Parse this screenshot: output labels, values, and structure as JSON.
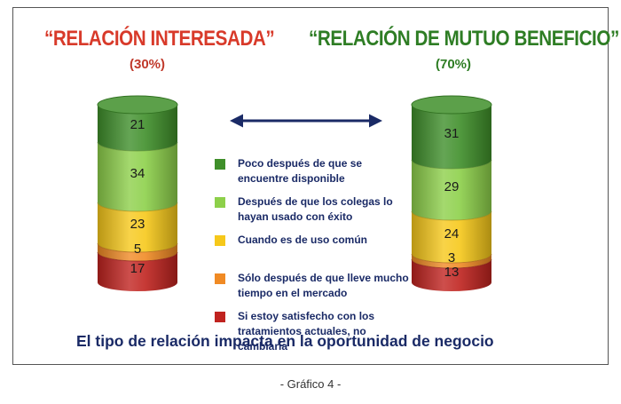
{
  "titles": {
    "left": "“RELACIÓN INTERESADA”",
    "left_pct": "(30%)",
    "right": "“RELACIÓN DE MUTUO BENEFICIO”",
    "right_pct": "(70%)"
  },
  "legend": [
    {
      "label": "Poco después de que se encuentre disponible",
      "color": "#3f8f2a"
    },
    {
      "label": "Después de que los colegas lo hayan usado con éxito",
      "color": "#8dd04a"
    },
    {
      "label": "Cuando es de uso común",
      "color": "#f6c81a"
    },
    {
      "label": "Sólo después de que lleve mucho tiempo en el mercado",
      "color": "#f08a24"
    },
    {
      "label": "Si estoy satisfecho con los tratamientos actuales, no cambiaría",
      "color": "#c0231f"
    }
  ],
  "caption": "El tipo de relación impacta en la oportunidad de negocio",
  "footer": "- Gráfico 4 -",
  "chart_data": {
    "type": "bar",
    "stacked": true,
    "categories": [
      "“RELACIÓN INTERESADA” (30%)",
      "“RELACIÓN DE MUTUO BENEFICIO” (70%)"
    ],
    "series": [
      {
        "name": "Poco después de que se encuentre disponible",
        "values": [
          21,
          31
        ]
      },
      {
        "name": "Después de que los colegas lo hayan usado con éxito",
        "values": [
          34,
          29
        ]
      },
      {
        "name": "Cuando es de uso común",
        "values": [
          23,
          24
        ]
      },
      {
        "name": "Sólo después de que lleve mucho tiempo en el mercado",
        "values": [
          5,
          3
        ]
      },
      {
        "name": "Si estoy satisfecho con los tratamientos actuales, no cambiaría",
        "values": [
          17,
          13
        ]
      }
    ],
    "colors": {
      "Poco después de que se encuentre disponible": "#3f8f2a",
      "Después de que los colegas lo hayan usado con éxito": "#8dd04a",
      "Cuando es de uso común": "#f6c81a",
      "Sólo después de que lleve mucho tiempo en el mercado": "#f08a24",
      "Si estoy satisfecho con los tratamientos actuales, no cambiaría": "#c0231f"
    },
    "arrow": "double-headed"
  }
}
